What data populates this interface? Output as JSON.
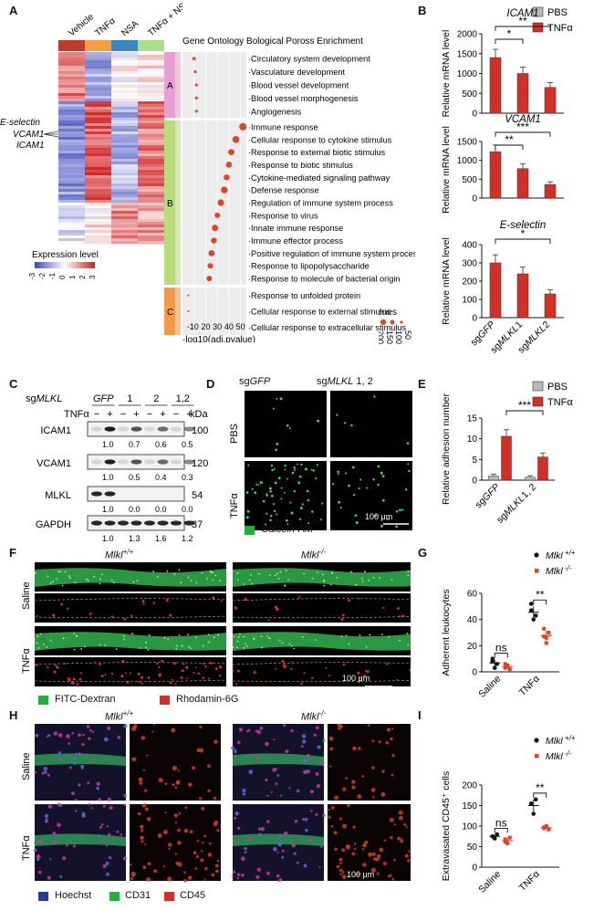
{
  "panels": {
    "A": "A",
    "B": "B",
    "C": "C",
    "D": "D",
    "E": "E",
    "F": "F",
    "G": "G",
    "H": "H",
    "I": "I"
  },
  "heatmap": {
    "conditions": [
      "Vehicle",
      "TNFα",
      "NSA",
      "TNFα + NSA"
    ],
    "condition_colors": [
      "#c0392b",
      "#f0a040",
      "#3a86c0",
      "#a8e08a"
    ],
    "gene_labels": [
      "E-selectin",
      "VCAM1",
      "ICAM1"
    ],
    "legend_title": "Expression level",
    "legend_ticks": [
      "-3",
      "-2",
      "-1",
      "0",
      "1",
      "2",
      "3"
    ],
    "clusters": [
      "A",
      "B",
      "C"
    ],
    "cluster_colors": [
      "#e79ed0",
      "#b7dc7a",
      "#f19a4a"
    ]
  },
  "go": {
    "title": "Gene Ontology Bological Poross Enrichment",
    "terms_A": [
      "Circulatory system development",
      "Vasculature development",
      "Blood vessel development",
      "Blood vessel morphogenesis",
      "Angiogenesis"
    ],
    "terms_B": [
      "Immune response",
      "Cellular response to cytokine stimulus",
      "Response to external biotic stimulus",
      "Response to biotic stimulus",
      "Cytokine-mediated signaling pathway",
      "Defense response",
      "Regulation of immune system process",
      "Response to virus",
      "Innate immune response",
      "Immune effector process",
      "Positive regulation of immune system process",
      "Response to lipopolysaccharide",
      "Response to molecule of bacterial origin"
    ],
    "terms_C": [
      "Response to unfolded protein",
      "Cellular response to external stimulus",
      "Cellular response to extracellular stimulus"
    ],
    "x_ticks": [
      "10",
      "20",
      "30",
      "40",
      "50"
    ],
    "x_label": "-log10(adj.pvalue)",
    "size_legend_title": "nGenes",
    "size_legend_ticks": [
      "200",
      "150",
      "100",
      "50"
    ]
  },
  "chart_data": [
    {
      "type": "bar",
      "title": "ICAM1",
      "ylabel": "Relative mRNA level",
      "categories": [
        "sgGFP",
        "sgMLKL1",
        "sgMLKL2"
      ],
      "series": [
        {
          "name": "TNFα",
          "values": [
            1400,
            1000,
            650
          ]
        }
      ],
      "ylim": [
        0,
        2000
      ],
      "yticks": [
        "0",
        "500",
        "1000",
        "1500",
        "2000"
      ],
      "annotations": [
        "*",
        "**"
      ]
    },
    {
      "type": "bar",
      "title": "VCAM1",
      "ylabel": "Relative mRNA level",
      "categories": [
        "sgGFP",
        "sgMLKL1",
        "sgMLKL2"
      ],
      "series": [
        {
          "name": "TNFα",
          "values": [
            1230,
            780,
            360
          ]
        }
      ],
      "ylim": [
        0,
        1500
      ],
      "yticks": [
        "0",
        "500",
        "1000",
        "1500"
      ],
      "annotations": [
        "**",
        "***"
      ]
    },
    {
      "type": "bar",
      "title": "E-selectin",
      "ylabel": "Relative mRNA level",
      "categories": [
        "sgGFP",
        "sgMLKL1",
        "sgMLKL2"
      ],
      "series": [
        {
          "name": "TNFα",
          "values": [
            300,
            240,
            130
          ]
        }
      ],
      "ylim": [
        0,
        400
      ],
      "yticks": [
        "0",
        "100",
        "200",
        "300",
        "400"
      ],
      "annotations": [
        "*"
      ]
    },
    {
      "type": "bar",
      "ylabel": "Relative adhesion number",
      "categories": [
        "sgGFP",
        "sgMLKL1, 2"
      ],
      "series": [
        {
          "name": "PBS",
          "values": [
            1.0,
            0.7
          ]
        },
        {
          "name": "TNFα",
          "values": [
            10.6,
            5.6
          ]
        }
      ],
      "ylim": [
        0,
        15
      ],
      "yticks": [
        "0",
        "5",
        "10",
        "15"
      ],
      "annotations": [
        "***"
      ]
    },
    {
      "type": "scatter",
      "ylabel": "Adherent leukocytes",
      "categories": [
        "Saline",
        "TNFα"
      ],
      "series": [
        {
          "name": "Mlkl +/+",
          "values": [
            [
              8,
              3,
              6,
              10
            ],
            [
              47,
              40,
              43,
              52
            ]
          ]
        },
        {
          "name": "Mlkl -/-",
          "values": [
            [
              3,
              5,
              2,
              6,
              4
            ],
            [
              27,
              22,
              30,
              33,
              26
            ]
          ]
        }
      ],
      "ylim": [
        0,
        60
      ],
      "yticks": [
        "0",
        "20",
        "40",
        "60"
      ],
      "annotations": [
        "ns",
        "**"
      ]
    },
    {
      "type": "scatter",
      "ylabel": "Extravasated CD45⁺ cells",
      "categories": [
        "Saline",
        "TNFα"
      ],
      "series": [
        {
          "name": "Mlkl +/+",
          "values": [
            [
              75,
              70,
              80
            ],
            [
              155,
              130,
              165
            ]
          ]
        },
        {
          "name": "Mlkl -/-",
          "values": [
            [
              68,
              58,
              72,
              62
            ],
            [
              95,
              100,
              92,
              97
            ]
          ]
        }
      ],
      "ylim": [
        0,
        200
      ],
      "yticks": [
        "0",
        "50",
        "100",
        "150",
        "200"
      ],
      "annotations": [
        "ns",
        "**"
      ]
    }
  ],
  "legend_b": {
    "pbs": "PBS",
    "tnf": "TNFα"
  },
  "legend_e": {
    "pbs": "PBS",
    "tnf": "TNFα"
  },
  "legend_g": {
    "wt": "Mlkl",
    "wt_sup": "+/+",
    "ko": "Mlkl",
    "ko_sup": "-/-"
  },
  "legend_i": {
    "wt": "Mlkl",
    "wt_sup": "+/+",
    "ko": "Mlkl",
    "ko_sup": "-/-"
  },
  "colors": {
    "pbs": "#b8b8b8",
    "tnf": "#d42f24",
    "wt": "#111111",
    "ko": "#e0401f"
  },
  "western": {
    "sg_label": "sgMLKL",
    "groups": [
      "GFP",
      "1",
      "2",
      "1,2"
    ],
    "tnf_label": "TNFα",
    "treat": [
      "−",
      "+",
      "−",
      "+",
      "−",
      "+",
      "−",
      "+"
    ],
    "kda": "kDa",
    "rows": [
      {
        "name": "ICAM1",
        "kda": "100",
        "quant": [
          "1.0",
          "0.7",
          "0.6",
          "0.5"
        ]
      },
      {
        "name": "VCAM1",
        "kda": "120",
        "quant": [
          "1.0",
          "0.5",
          "0.4",
          "0.3"
        ]
      },
      {
        "name": "MLKL",
        "kda": "54",
        "quant": [
          "1.0",
          "0.0",
          "0.0",
          "0.0"
        ]
      },
      {
        "name": "GAPDH",
        "kda": "37",
        "quant": [
          "1.0",
          "1.3",
          "1.6",
          "1.2"
        ]
      }
    ]
  },
  "panel_d": {
    "col1": "sgGFP",
    "col2": "sgMLKL 1, 2",
    "row1": "PBS",
    "row2": "TNFα",
    "scale": "100 μm",
    "legend": "Calcein-AM"
  },
  "panel_f": {
    "col1": "Mlkl",
    "col1_sup": "+/+",
    "col2": "Mlkl",
    "col2_sup": "-/-",
    "row1": "Saline",
    "row2": "TNFα",
    "scale": "100 μm",
    "legend1": "FITC-Dextran",
    "legend2": "Rhodamin-6G"
  },
  "panel_h": {
    "col1": "Mlkl",
    "col1_sup": "+/+",
    "col2": "Mlkl",
    "col2_sup": "-/-",
    "row1": "Saline",
    "row2": "TNFα",
    "scale": "100 μm",
    "legend1": "Hoechst",
    "legend2": "CD31",
    "legend3": "CD45"
  }
}
